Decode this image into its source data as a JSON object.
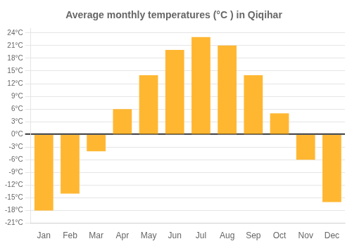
{
  "chart_data": {
    "type": "bar",
    "title": "Average monthly temperatures (°C ) in Qiqihar",
    "categories": [
      "Jan",
      "Feb",
      "Mar",
      "Apr",
      "May",
      "Jun",
      "Jul",
      "Aug",
      "Sep",
      "Oct",
      "Nov",
      "Dec"
    ],
    "values": [
      -18,
      -14,
      -4,
      6,
      14,
      20,
      23,
      21,
      14,
      5,
      -6,
      -16
    ],
    "color": "#FFB732",
    "ylim": [
      -21,
      25
    ],
    "yticks": [
      {
        "value": -21,
        "label": "-21°C"
      },
      {
        "value": -18,
        "label": "-18°C"
      },
      {
        "value": -15,
        "label": "-15°C"
      },
      {
        "value": -12,
        "label": "-12°C"
      },
      {
        "value": -9,
        "label": "-9°C"
      },
      {
        "value": -6,
        "label": "-6°C"
      },
      {
        "value": -3,
        "label": "-3°C"
      },
      {
        "value": 0,
        "label": "0°C"
      },
      {
        "value": 3,
        "label": "3°C"
      },
      {
        "value": 6,
        "label": "6°C"
      },
      {
        "value": 9,
        "label": "9°C"
      },
      {
        "value": 12,
        "label": "12°C"
      },
      {
        "value": 15,
        "label": "15°C"
      },
      {
        "value": 18,
        "label": "18°C"
      },
      {
        "value": 21,
        "label": "21°C"
      },
      {
        "value": 24,
        "label": "24°C"
      }
    ],
    "grid": true
  }
}
